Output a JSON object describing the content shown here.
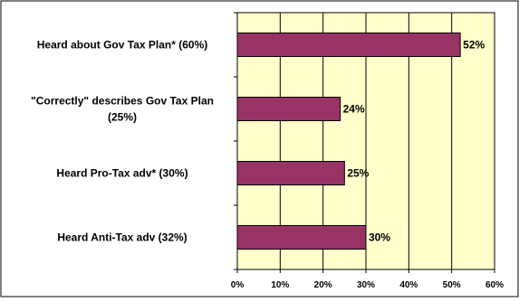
{
  "chart_data": {
    "type": "bar",
    "orientation": "horizontal",
    "categories": [
      "Heard about Gov Tax Plan* (60%)",
      "\"Correctly\" describes Gov Tax Plan (25%)",
      "Heard Pro-Tax adv* (30%)",
      "Heard Anti-Tax adv (32%)"
    ],
    "category_lines": [
      [
        "Heard about Gov Tax Plan* (60%)"
      ],
      [
        "\"Correctly\" describes Gov Tax Plan",
        "(25%)"
      ],
      [
        "Heard Pro-Tax adv* (30%)"
      ],
      [
        "Heard Anti-Tax adv (32%)"
      ]
    ],
    "values": [
      52,
      24,
      25,
      30
    ],
    "value_labels": [
      "52%",
      "24%",
      "25%",
      "30%"
    ],
    "xlim": [
      0,
      60
    ],
    "x_ticks": [
      0,
      10,
      20,
      30,
      40,
      50,
      60
    ],
    "x_tick_labels": [
      "0%",
      "10%",
      "20%",
      "30%",
      "40%",
      "50%",
      "60%"
    ],
    "title": "",
    "xlabel": "",
    "ylabel": "",
    "grid": true,
    "legend": "none",
    "colors": {
      "bar": "#993366",
      "bar_stroke": "#000000",
      "plot_background": "#FFFFCC",
      "gridline": "#000000",
      "border": "#000000"
    }
  }
}
